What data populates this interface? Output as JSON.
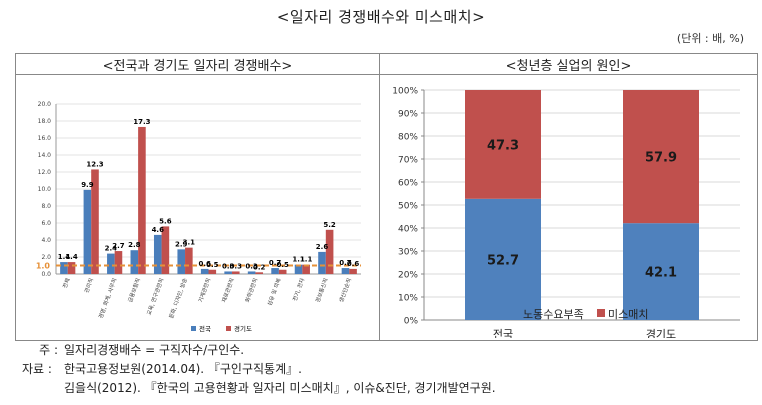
{
  "title": "<일자리 경쟁배수와 미스매치>",
  "unit": "(단위 : 배, %)",
  "chart_data": [
    {
      "type": "bar",
      "title": "<전국과 경기도 일자리 경쟁배수>",
      "categories": [
        "전체",
        "관리직",
        "경영, 회계, 사무직",
        "금융보험직",
        "교육, 연구관련직",
        "문화, 디자인, 방송",
        "기계관련직",
        "재료관련직",
        "화학관련직",
        "섬유 및 의복",
        "전기, 전자",
        "정보통신직",
        "생산단순직"
      ],
      "series": [
        {
          "name": "전국",
          "color": "#4a7ebb",
          "values": [
            1.4,
            9.9,
            2.4,
            2.8,
            4.6,
            2.9,
            0.6,
            0.3,
            0.3,
            0.7,
            1.1,
            2.6,
            0.7
          ]
        },
        {
          "name": "경기도",
          "color": "#c0504d",
          "values": [
            1.4,
            12.3,
            2.7,
            17.3,
            5.6,
            3.1,
            0.5,
            0.3,
            0.2,
            0.5,
            1.1,
            5.2,
            0.6
          ]
        }
      ],
      "labels_nat": [
        "1.4",
        "9.9",
        "2.4",
        "2.8",
        "4.6",
        "2.9",
        "0.6",
        "0.3",
        "0.3",
        "0.7",
        "1.1",
        "2.6",
        "0.7"
      ],
      "labels_gg": [
        "1.4",
        "12.3",
        "2.7",
        "17.3",
        "5.6",
        "3.1",
        "0.5",
        "0.3",
        "0.2",
        "0.5",
        "1.1",
        "5.2",
        "0.6"
      ],
      "yticks": [
        "0.0",
        "2.0",
        "4.0",
        "6.0",
        "8.0",
        "10.0",
        "12.0",
        "14.0",
        "16.0",
        "18.0",
        "20.0"
      ],
      "ylim": [
        0,
        20
      ],
      "reference_line": {
        "value": 1.0,
        "label": "1.0",
        "color": "#e69138"
      },
      "legend_position": "bottom"
    },
    {
      "type": "bar",
      "stacked": true,
      "title": "<청년층 실업의 원인>",
      "categories": [
        "전국",
        "경기도"
      ],
      "series": [
        {
          "name": "노동수요부족",
          "color": "#4f81bd",
          "values": [
            52.7,
            42.1
          ]
        },
        {
          "name": "미스매치",
          "color": "#c0504d",
          "values": [
            47.3,
            57.9
          ]
        }
      ],
      "labels_demand": [
        "52.7",
        "42.1"
      ],
      "labels_mismatch": [
        "47.3",
        "57.9"
      ],
      "yticks": [
        "0%",
        "10%",
        "20%",
        "30%",
        "40%",
        "50%",
        "60%",
        "70%",
        "80%",
        "90%",
        "100%"
      ],
      "ylim": [
        0,
        100
      ],
      "legend_position": "bottom"
    }
  ],
  "notes": {
    "note_lead": "주 :",
    "note_text": "일자리경쟁배수 = 구직자수/구인수.",
    "source_lead": "자료 :",
    "source_text": "한국고용정보원(2014.04). 『구인구직통계』.",
    "source_text2": "김을식(2012). 『한국의 고용현황과 일자리 미스매치』, 이슈&진단, 경기개발연구원."
  }
}
